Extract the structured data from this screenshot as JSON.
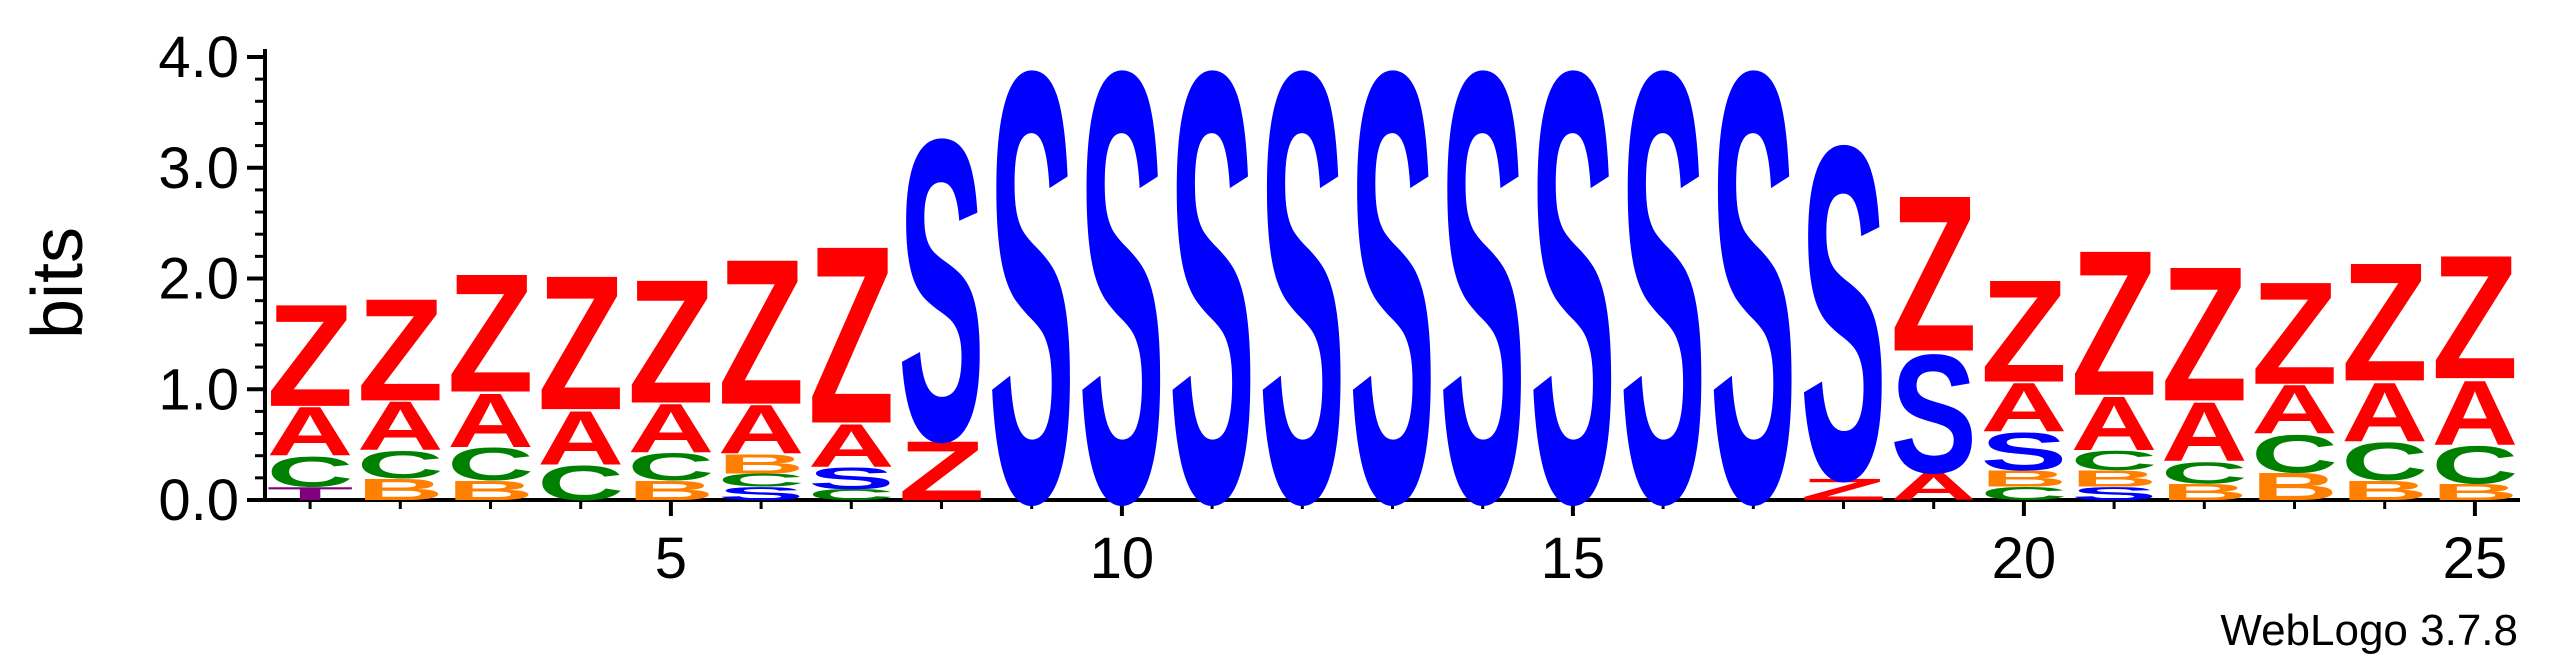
{
  "credit": "WebLogo 3.7.8",
  "colors": {
    "Z": "#ff0000",
    "A": "#ff0000",
    "S": "#0000ff",
    "C": "#008000",
    "B": "#ff8000",
    "T": "#800080",
    "axis": "#000000"
  },
  "chart_data": {
    "type": "sequence-logo",
    "ylabel": "bits",
    "ylim": [
      0,
      4.0
    ],
    "y_ticks": [
      "0.0",
      "1.0",
      "2.0",
      "3.0",
      "4.0"
    ],
    "x_ticks": [
      5,
      10,
      15,
      20,
      25
    ],
    "positions": [
      {
        "pos": 1,
        "stack": [
          [
            "T",
            0.12
          ],
          [
            "C",
            0.28
          ],
          [
            "A",
            0.45
          ],
          [
            "Z",
            0.95
          ]
        ]
      },
      {
        "pos": 2,
        "stack": [
          [
            "B",
            0.2
          ],
          [
            "C",
            0.25
          ],
          [
            "A",
            0.45
          ],
          [
            "Z",
            0.95
          ]
        ]
      },
      {
        "pos": 3,
        "stack": [
          [
            "B",
            0.18
          ],
          [
            "C",
            0.3
          ],
          [
            "A",
            0.5
          ],
          [
            "Z",
            1.1
          ]
        ]
      },
      {
        "pos": 4,
        "stack": [
          [
            "C",
            0.32
          ],
          [
            "A",
            0.5
          ],
          [
            "Z",
            1.25
          ]
        ]
      },
      {
        "pos": 5,
        "stack": [
          [
            "B",
            0.18
          ],
          [
            "C",
            0.25
          ],
          [
            "A",
            0.45
          ],
          [
            "Z",
            1.15
          ]
        ]
      },
      {
        "pos": 6,
        "stack": [
          [
            "S",
            0.12
          ],
          [
            "C",
            0.12
          ],
          [
            "B",
            0.18
          ],
          [
            "A",
            0.45
          ],
          [
            "Z",
            1.35
          ]
        ]
      },
      {
        "pos": 7,
        "stack": [
          [
            "C",
            0.1
          ],
          [
            "S",
            0.2
          ],
          [
            "A",
            0.4
          ],
          [
            "Z",
            1.65
          ]
        ]
      },
      {
        "pos": 8,
        "stack": [
          [
            "Z",
            0.55
          ],
          [
            "S",
            2.8
          ]
        ]
      },
      {
        "pos": 9,
        "stack": [
          [
            "S",
            4.0
          ]
        ]
      },
      {
        "pos": 10,
        "stack": [
          [
            "S",
            4.0
          ]
        ]
      },
      {
        "pos": 11,
        "stack": [
          [
            "S",
            4.0
          ]
        ]
      },
      {
        "pos": 12,
        "stack": [
          [
            "S",
            4.0
          ]
        ]
      },
      {
        "pos": 13,
        "stack": [
          [
            "S",
            4.0
          ]
        ]
      },
      {
        "pos": 14,
        "stack": [
          [
            "S",
            4.0
          ]
        ]
      },
      {
        "pos": 15,
        "stack": [
          [
            "S",
            4.0
          ]
        ]
      },
      {
        "pos": 16,
        "stack": [
          [
            "S",
            4.0
          ]
        ]
      },
      {
        "pos": 17,
        "stack": [
          [
            "S",
            4.0
          ]
        ]
      },
      {
        "pos": 18,
        "stack": [
          [
            "Z",
            0.2
          ],
          [
            "S",
            3.1
          ]
        ]
      },
      {
        "pos": 19,
        "stack": [
          [
            "A",
            0.25
          ],
          [
            "S",
            1.1
          ],
          [
            "Z",
            1.45
          ]
        ]
      },
      {
        "pos": 20,
        "stack": [
          [
            "C",
            0.12
          ],
          [
            "B",
            0.15
          ],
          [
            "S",
            0.35
          ],
          [
            "A",
            0.45
          ],
          [
            "Z",
            0.95
          ]
        ]
      },
      {
        "pos": 21,
        "stack": [
          [
            "S",
            0.12
          ],
          [
            "B",
            0.15
          ],
          [
            "C",
            0.18
          ],
          [
            "A",
            0.5
          ],
          [
            "Z",
            1.35
          ]
        ]
      },
      {
        "pos": 22,
        "stack": [
          [
            "B",
            0.15
          ],
          [
            "C",
            0.2
          ],
          [
            "A",
            0.55
          ],
          [
            "Z",
            1.25
          ]
        ]
      },
      {
        "pos": 23,
        "stack": [
          [
            "B",
            0.25
          ],
          [
            "C",
            0.35
          ],
          [
            "A",
            0.45
          ],
          [
            "Z",
            0.95
          ]
        ]
      },
      {
        "pos": 24,
        "stack": [
          [
            "B",
            0.18
          ],
          [
            "C",
            0.35
          ],
          [
            "A",
            0.55
          ],
          [
            "Z",
            1.1
          ]
        ]
      },
      {
        "pos": 25,
        "stack": [
          [
            "B",
            0.15
          ],
          [
            "C",
            0.35
          ],
          [
            "A",
            0.6
          ],
          [
            "Z",
            1.15
          ]
        ]
      }
    ]
  }
}
